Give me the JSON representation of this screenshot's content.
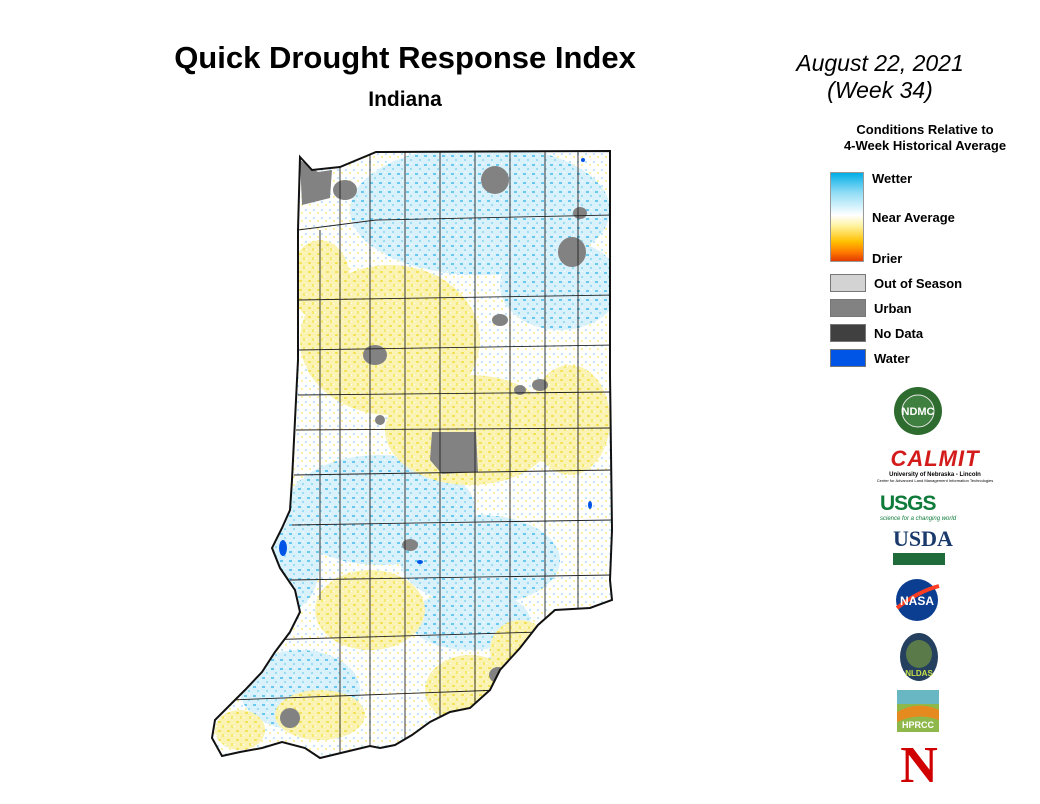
{
  "header": {
    "title": "Quick Drought Response Index",
    "subtitle": "Indiana",
    "date_line1": "August 22, 2021",
    "date_line2": "(Week 34)"
  },
  "legend": {
    "title_line1": "Conditions Relative to",
    "title_line2": "4-Week Historical Average",
    "ramp": {
      "wetter": "Wetter",
      "near_average": "Near Average",
      "drier": "Drier"
    },
    "categories": [
      {
        "label": "Out of Season",
        "color": "#d3d3d3"
      },
      {
        "label": "Urban",
        "color": "#828282"
      },
      {
        "label": "No Data",
        "color": "#404040"
      },
      {
        "label": "Water",
        "color": "#0055e6"
      }
    ],
    "colors": {
      "wetter": "#00aee8",
      "near_average": "#ffffff",
      "drier": "#e23a00"
    }
  },
  "logos": {
    "ndmc": "NDMC",
    "calmit": "CALMIT",
    "calmit_sub1": "University of Nebraska - Lincoln",
    "calmit_sub2": "Center for Advanced Land Management Information Technologies",
    "usgs": "USGS",
    "usgs_sub": "science for a changing world",
    "usda": "USDA",
    "nasa": "NASA",
    "nldas": "NLDAS",
    "hprcc": "HPRCC",
    "nebraska": "N"
  },
  "map": {
    "state": "Indiana",
    "fill_colors": {
      "wet": "#8fd8f2",
      "dry": "#f6ee8a",
      "urban": "#828282",
      "water": "#0055e6"
    }
  }
}
